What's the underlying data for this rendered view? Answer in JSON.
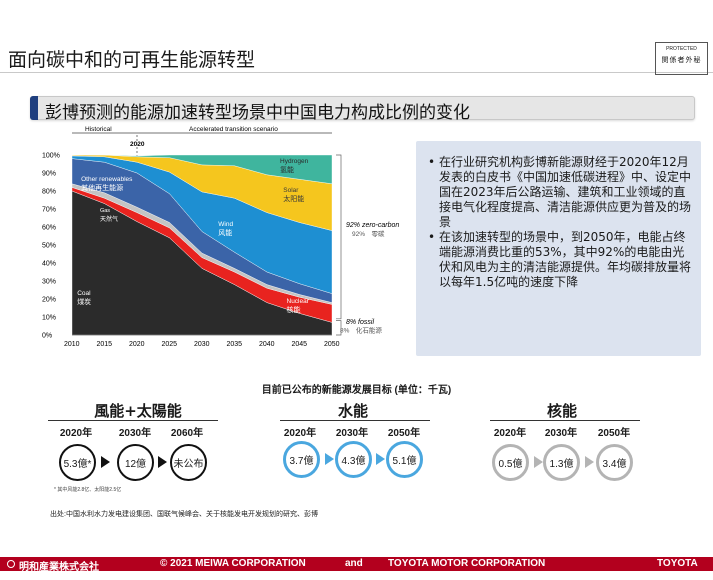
{
  "page": {
    "title": "面向碳中和的可再生能源转型",
    "protected_label": "PROTECTED",
    "protected_cn": "関係者外秘"
  },
  "subtitle": "彭博预测的能源加速转型场景中中国电力构成比例的变化",
  "chart_data": {
    "type": "area",
    "stacked": true,
    "x": [
      2010,
      2015,
      2020,
      2025,
      2030,
      2035,
      2040,
      2045,
      2050
    ],
    "x_ticks": [
      "2010",
      "2015",
      "2020",
      "2025",
      "2030",
      "2035",
      "2040",
      "2045",
      "2050"
    ],
    "y_ticks": [
      "0%",
      "10%",
      "20%",
      "30%",
      "40%",
      "50%",
      "60%",
      "70%",
      "80%",
      "90%",
      "100%"
    ],
    "ylim": [
      0,
      100
    ],
    "top_labels": {
      "historical": "Historical",
      "accelerated": "Accelerated transition scenario",
      "year2020": "2020"
    },
    "series": [
      {
        "name": "Coal",
        "name_cn": "煤炭",
        "color": "#2b2b2b",
        "values": [
          80,
          73,
          63,
          54,
          37,
          28,
          18,
          12,
          7
        ]
      },
      {
        "name": "Nuclear",
        "name_cn": "核能",
        "color": "#e8231f",
        "values": [
          2,
          3,
          5,
          5.5,
          6,
          7,
          8,
          9,
          10
        ]
      },
      {
        "name": "Gas",
        "name_cn": "天然气",
        "color": "#c4c4c4",
        "values": [
          2,
          3,
          3,
          3,
          2.5,
          2,
          2,
          1.5,
          1
        ]
      },
      {
        "name": "Other renewables",
        "name_cn": "其他再生能源",
        "color": "#3b64a8",
        "values": [
          14,
          17,
          19,
          16,
          12,
          9,
          7,
          6,
          5
        ]
      },
      {
        "name": "Wind",
        "name_cn": "风能",
        "color": "#1e8fd2",
        "values": [
          1.5,
          3,
          6,
          12,
          22,
          30,
          33,
          34,
          35
        ]
      },
      {
        "name": "Solar",
        "name_cn": "太阳能",
        "color": "#f5c61e",
        "values": [
          0.5,
          1,
          3,
          8,
          15,
          18,
          21,
          24,
          26
        ]
      },
      {
        "name": "Hydrogen",
        "name_cn": "氢能",
        "color": "#3fb59e",
        "values": [
          0,
          0,
          0.5,
          1.5,
          5.5,
          6,
          11,
          13.5,
          16
        ]
      }
    ],
    "annotations": {
      "zero_carbon": "92% zero-carbon",
      "zero_carbon_cn": "92%　零碳",
      "fossil": "8% fossil",
      "fossil_cn": "8%　化石能源"
    }
  },
  "bullets": [
    "在行业研究机构彭博新能源财经于2020年12月发表的白皮书《中国加速低碳进程》中、设定中国在2023年后公路运输、建筑和工业领域的直接电气化程度提高、清洁能源供应更为普及的场景",
    "在该加速转型的场景中，到2050年，电能占终端能源消费比重的53%，其中92%的电能由光伏和风电为主的清洁能源提供。年均碳排放量将以每年1.5亿吨的速度下降"
  ],
  "targets": {
    "title": "目前已公布的新能源发展目标 (单位：千瓦)",
    "sections": [
      {
        "title": "風能+太陽能",
        "years": [
          "2020年",
          "2030年",
          "2060年"
        ],
        "values": [
          "5.3億*",
          "12億",
          "未公布"
        ],
        "style": "black"
      },
      {
        "title": "水能",
        "years": [
          "2020年",
          "2030年",
          "2050年"
        ],
        "values": [
          "3.7億",
          "4.3億",
          "5.1億"
        ],
        "style": "blue"
      },
      {
        "title": "核能",
        "years": [
          "2020年",
          "2030年",
          "2050年"
        ],
        "values": [
          "0.5億",
          "1.3億",
          "3.4億"
        ],
        "style": "gray"
      }
    ],
    "footnote": "* 其中风能2.8亿、太阳能2.5亿",
    "source": "出处:中国水利水力发电建设集团、国联气候峰会、关于核能发电开发规划的研究、彭博"
  },
  "footer": {
    "company_left": "明和産業株式会社",
    "copyright": "© 2021 MEIWA CORPORATION",
    "and": "and",
    "company_right": "TOYOTA MOTOR CORPORATION",
    "brand": "TOYOTA"
  }
}
